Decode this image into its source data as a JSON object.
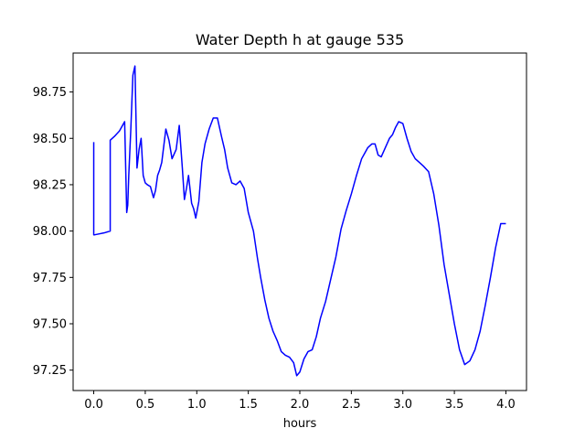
{
  "chart_data": {
    "type": "line",
    "title": "Water Depth h at gauge 535",
    "xlabel": "hours",
    "ylabel": "",
    "xlim": [
      -0.2,
      4.2
    ],
    "ylim": [
      97.14,
      98.96
    ],
    "xticks": [
      0.0,
      0.5,
      1.0,
      1.5,
      2.0,
      2.5,
      3.0,
      3.5,
      4.0
    ],
    "xtick_labels": [
      "0.0",
      "0.5",
      "1.0",
      "1.5",
      "2.0",
      "2.5",
      "3.0",
      "3.5",
      "4.0"
    ],
    "yticks": [
      97.25,
      97.5,
      97.75,
      98.0,
      98.25,
      98.5,
      98.75
    ],
    "ytick_labels": [
      "97.25",
      "97.50",
      "97.75",
      "98.00",
      "98.25",
      "98.50",
      "98.75"
    ],
    "grid": false,
    "series": [
      {
        "color": "#0000ff",
        "x": [
          0.0,
          0.0,
          0.01,
          0.1,
          0.16,
          0.16,
          0.2,
          0.25,
          0.3,
          0.32,
          0.33,
          0.34,
          0.36,
          0.38,
          0.4,
          0.42,
          0.44,
          0.46,
          0.48,
          0.5,
          0.52,
          0.55,
          0.58,
          0.6,
          0.62,
          0.64,
          0.66,
          0.7,
          0.73,
          0.76,
          0.8,
          0.83,
          0.86,
          0.88,
          0.9,
          0.92,
          0.95,
          0.97,
          0.99,
          1.02,
          1.05,
          1.08,
          1.12,
          1.16,
          1.2,
          1.24,
          1.27,
          1.3,
          1.34,
          1.38,
          1.42,
          1.46,
          1.5,
          1.55,
          1.59,
          1.62,
          1.66,
          1.7,
          1.74,
          1.78,
          1.82,
          1.86,
          1.9,
          1.94,
          1.97,
          2.0,
          2.04,
          2.08,
          2.12,
          2.16,
          2.2,
          2.25,
          2.3,
          2.35,
          2.4,
          2.45,
          2.5,
          2.55,
          2.6,
          2.63,
          2.66,
          2.7,
          2.73,
          2.76,
          2.79,
          2.83,
          2.87,
          2.9,
          2.93,
          2.96,
          3.0,
          3.04,
          3.08,
          3.12,
          3.16,
          3.2,
          3.25,
          3.3,
          3.35,
          3.4,
          3.45,
          3.5,
          3.55,
          3.6,
          3.65,
          3.7,
          3.75,
          3.8,
          3.85,
          3.9,
          3.95,
          4.0
        ],
        "y": [
          98.48,
          97.98,
          97.98,
          97.99,
          98.0,
          98.49,
          98.51,
          98.54,
          98.59,
          98.1,
          98.14,
          98.3,
          98.55,
          98.84,
          98.89,
          98.34,
          98.44,
          98.5,
          98.3,
          98.26,
          98.25,
          98.24,
          98.18,
          98.22,
          98.3,
          98.33,
          98.37,
          98.55,
          98.49,
          98.39,
          98.44,
          98.57,
          98.34,
          98.17,
          98.23,
          98.3,
          98.15,
          98.12,
          98.07,
          98.16,
          98.37,
          98.47,
          98.55,
          98.61,
          98.61,
          98.51,
          98.44,
          98.34,
          98.26,
          98.25,
          98.27,
          98.23,
          98.1,
          98.0,
          97.85,
          97.75,
          97.63,
          97.53,
          97.46,
          97.41,
          97.35,
          97.33,
          97.32,
          97.29,
          97.22,
          97.24,
          97.31,
          97.35,
          97.36,
          97.43,
          97.53,
          97.62,
          97.74,
          97.86,
          98.01,
          98.11,
          98.2,
          98.3,
          98.39,
          98.42,
          98.45,
          98.47,
          98.47,
          98.41,
          98.4,
          98.45,
          98.5,
          98.52,
          98.56,
          98.59,
          98.58,
          98.5,
          98.43,
          98.39,
          98.37,
          98.35,
          98.32,
          98.2,
          98.03,
          97.82,
          97.66,
          97.5,
          97.36,
          97.28,
          97.3,
          97.36,
          97.46,
          97.6,
          97.75,
          97.91,
          98.04,
          98.04
        ]
      }
    ]
  }
}
